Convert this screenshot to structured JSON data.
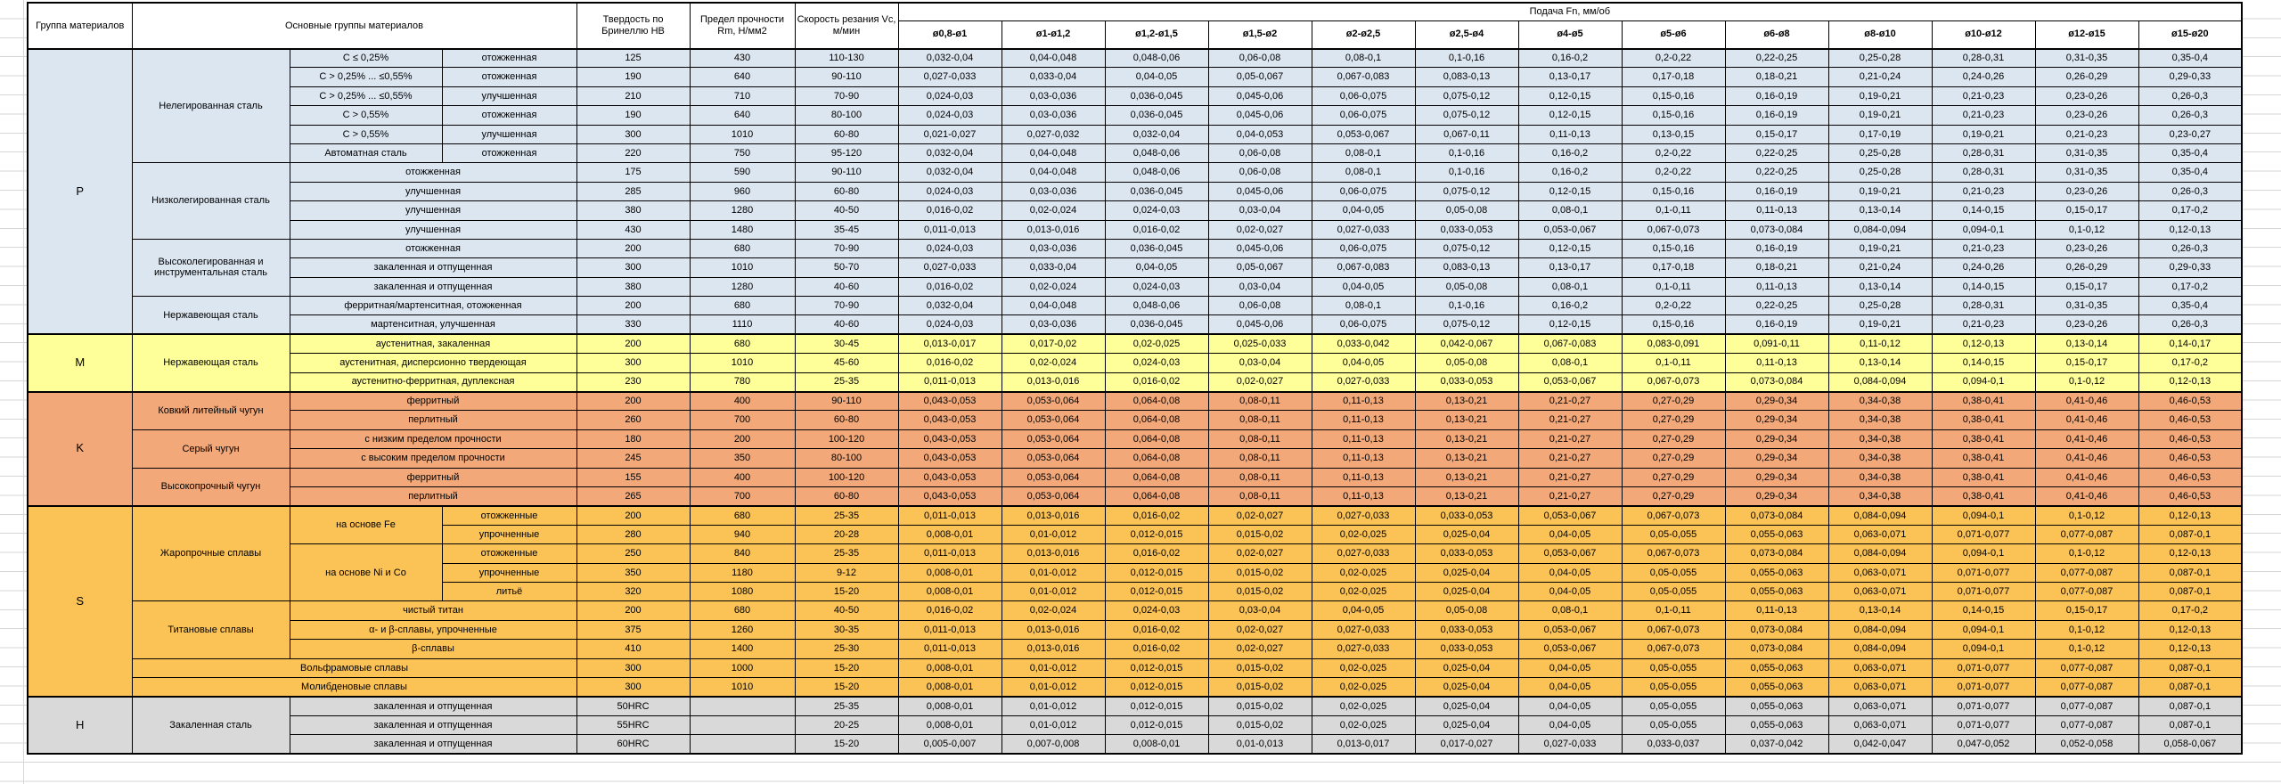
{
  "header": {
    "col_group": "Группа материалов",
    "col_materials": "Основные группы материалов",
    "col_hb": "Твердость по Бринеллю HB",
    "col_rm": "Предел прочности Rm, Н/мм2",
    "col_vc": "Скорость резания Vc, м/мин",
    "feed_title": "Подача Fn, мм/об",
    "diameters": [
      "ø0,8-ø1",
      "ø1-ø1,2",
      "ø1,2-ø1,5",
      "ø1,5-ø2",
      "ø2-ø2,5",
      "ø2,5-ø4",
      "ø4-ø5",
      "ø5-ø6",
      "ø6-ø8",
      "ø8-ø10",
      "ø10-ø12",
      "ø12-ø15",
      "ø15-ø20"
    ]
  },
  "feed_patterns": {
    "A": [
      "0,032-0,04",
      "0,04-0,048",
      "0,048-0,06",
      "0,06-0,08",
      "0,08-0,1",
      "0,1-0,16",
      "0,16-0,2",
      "0,2-0,22",
      "0,22-0,25",
      "0,25-0,28",
      "0,28-0,31",
      "0,31-0,35",
      "0,35-0,4"
    ],
    "B": [
      "0,027-0,033",
      "0,033-0,04",
      "0,04-0,05",
      "0,05-0,067",
      "0,067-0,083",
      "0,083-0,13",
      "0,13-0,17",
      "0,17-0,18",
      "0,18-0,21",
      "0,21-0,24",
      "0,24-0,26",
      "0,26-0,29",
      "0,29-0,33"
    ],
    "C": [
      "0,024-0,03",
      "0,03-0,036",
      "0,036-0,045",
      "0,045-0,06",
      "0,06-0,075",
      "0,075-0,12",
      "0,12-0,15",
      "0,15-0,16",
      "0,16-0,19",
      "0,19-0,21",
      "0,21-0,23",
      "0,23-0,26",
      "0,26-0,3"
    ],
    "D": [
      "0,021-0,027",
      "0,027-0,032",
      "0,032-0,04",
      "0,04-0,053",
      "0,053-0,067",
      "0,067-0,11",
      "0,11-0,13",
      "0,13-0,15",
      "0,15-0,17",
      "0,17-0,19",
      "0,19-0,21",
      "0,21-0,23",
      "0,23-0,27"
    ],
    "E": [
      "0,016-0,02",
      "0,02-0,024",
      "0,024-0,03",
      "0,03-0,04",
      "0,04-0,05",
      "0,05-0,08",
      "0,08-0,1",
      "0,1-0,11",
      "0,11-0,13",
      "0,13-0,14",
      "0,14-0,15",
      "0,15-0,17",
      "0,17-0,2"
    ],
    "F": [
      "0,011-0,013",
      "0,013-0,016",
      "0,016-0,02",
      "0,02-0,027",
      "0,027-0,033",
      "0,033-0,053",
      "0,053-0,067",
      "0,067-0,073",
      "0,073-0,084",
      "0,084-0,094",
      "0,094-0,1",
      "0,1-0,12",
      "0,12-0,13"
    ],
    "G": [
      "0,013-0,017",
      "0,017-0,02",
      "0,02-0,025",
      "0,025-0,033",
      "0,033-0,042",
      "0,042-0,067",
      "0,067-0,083",
      "0,083-0,091",
      "0,091-0,11",
      "0,11-0,12",
      "0,12-0,13",
      "0,13-0,14",
      "0,14-0,17"
    ],
    "K": [
      "0,043-0,053",
      "0,053-0,064",
      "0,064-0,08",
      "0,08-0,11",
      "0,11-0,13",
      "0,13-0,21",
      "0,21-0,27",
      "0,27-0,29",
      "0,29-0,34",
      "0,34-0,38",
      "0,38-0,41",
      "0,41-0,46",
      "0,46-0,53"
    ],
    "S": [
      "0,008-0,01",
      "0,01-0,012",
      "0,012-0,015",
      "0,015-0,02",
      "0,02-0,025",
      "0,025-0,04",
      "0,04-0,05",
      "0,05-0,055",
      "0,055-0,063",
      "0,063-0,071",
      "0,071-0,077",
      "0,077-0,087",
      "0,087-0,1"
    ],
    "H": [
      "0,005-0,007",
      "0,007-0,008",
      "0,008-0,01",
      "0,01-0,013",
      "0,013-0,017",
      "0,017-0,027",
      "0,027-0,033",
      "0,033-0,037",
      "0,037-0,042",
      "0,042-0,047",
      "0,047-0,052",
      "0,052-0,058",
      "0,058-0,067"
    ]
  },
  "groups": [
    {
      "code": "P",
      "color": "#dce6f1",
      "families": [
        {
          "name": "Нелегированная сталь",
          "rows": [
            {
              "sub": "C ≤ 0,25%",
              "state": "отожженная",
              "hb": "125",
              "rm": "430",
              "vc": "110-130",
              "feeds": "A"
            },
            {
              "sub": "C > 0,25% ... ≤0,55%",
              "state": "отожженная",
              "hb": "190",
              "rm": "640",
              "vc": "90-110",
              "feeds": "B"
            },
            {
              "sub": "C > 0,25% ... ≤0,55%",
              "state": "улучшенная",
              "hb": "210",
              "rm": "710",
              "vc": "70-90",
              "feeds": "C"
            },
            {
              "sub": "C > 0,55%",
              "state": "отожженная",
              "hb": "190",
              "rm": "640",
              "vc": "80-100",
              "feeds": "C"
            },
            {
              "sub": "C > 0,55%",
              "state": "улучшенная",
              "hb": "300",
              "rm": "1010",
              "vc": "60-80",
              "feeds": "D"
            },
            {
              "sub": "Автоматная сталь",
              "state": "отожженная",
              "hb": "220",
              "rm": "750",
              "vc": "95-120",
              "feeds": "A"
            }
          ]
        },
        {
          "name": "Низколегированная сталь",
          "rows": [
            {
              "sub": "отожженная",
              "merged": true,
              "hb": "175",
              "rm": "590",
              "vc": "90-110",
              "feeds": "A"
            },
            {
              "sub": "улучшенная",
              "merged": true,
              "hb": "285",
              "rm": "960",
              "vc": "60-80",
              "feeds": "C"
            },
            {
              "sub": "улучшенная",
              "merged": true,
              "hb": "380",
              "rm": "1280",
              "vc": "40-50",
              "feeds": "E"
            },
            {
              "sub": "улучшенная",
              "merged": true,
              "hb": "430",
              "rm": "1480",
              "vc": "35-45",
              "feeds": "F"
            }
          ]
        },
        {
          "name": "Высоколегированная и инструментальная сталь",
          "rows": [
            {
              "sub": "отожженная",
              "merged": true,
              "hb": "200",
              "rm": "680",
              "vc": "70-90",
              "feeds": "C"
            },
            {
              "sub": "закаленная и отпущенная",
              "merged": true,
              "hb": "300",
              "rm": "1010",
              "vc": "50-70",
              "feeds": "B"
            },
            {
              "sub": "закаленная и отпущенная",
              "merged": true,
              "hb": "380",
              "rm": "1280",
              "vc": "40-60",
              "feeds": "E"
            }
          ]
        },
        {
          "name": "Нержавеющая сталь",
          "rows": [
            {
              "sub": "ферритная/мартенситная, отожженная",
              "merged": true,
              "hb": "200",
              "rm": "680",
              "vc": "70-90",
              "feeds": "A"
            },
            {
              "sub": "мартенситная, улучшенная",
              "merged": true,
              "hb": "330",
              "rm": "1110",
              "vc": "40-60",
              "feeds": "C"
            }
          ]
        }
      ]
    },
    {
      "code": "M",
      "color": "#ffff99",
      "families": [
        {
          "name": "Нержавеющая сталь",
          "rows": [
            {
              "sub": "аустенитная, закаленная",
              "merged": true,
              "hb": "200",
              "rm": "680",
              "vc": "30-45",
              "feeds": "G"
            },
            {
              "sub": "аустенитная, дисперсионно твердеющая",
              "merged": true,
              "hb": "300",
              "rm": "1010",
              "vc": "45-60",
              "feeds": "E"
            },
            {
              "sub": "аустенитно-ферритная, дуплексная",
              "merged": true,
              "hb": "230",
              "rm": "780",
              "vc": "25-35",
              "feeds": "F"
            }
          ]
        }
      ]
    },
    {
      "code": "K",
      "color": "#f2a878",
      "families": [
        {
          "name": "Ковкий литейный чугун",
          "rows": [
            {
              "sub": "ферритный",
              "merged": true,
              "hb": "200",
              "rm": "400",
              "vc": "90-110",
              "feeds": "K"
            },
            {
              "sub": "перлитный",
              "merged": true,
              "hb": "260",
              "rm": "700",
              "vc": "60-80",
              "feeds": "K"
            }
          ]
        },
        {
          "name": "Серый чугун",
          "rows": [
            {
              "sub": "с низким пределом прочности",
              "merged": true,
              "hb": "180",
              "rm": "200",
              "vc": "100-120",
              "feeds": "K"
            },
            {
              "sub": "с высоким пределом прочности",
              "merged": true,
              "hb": "245",
              "rm": "350",
              "vc": "80-100",
              "feeds": "K"
            }
          ]
        },
        {
          "name": "Высокопрочный чугун",
          "rows": [
            {
              "sub": "ферритный",
              "merged": true,
              "hb": "155",
              "rm": "400",
              "vc": "100-120",
              "feeds": "K"
            },
            {
              "sub": "перлитный",
              "merged": true,
              "hb": "265",
              "rm": "700",
              "vc": "60-80",
              "feeds": "K"
            }
          ]
        }
      ]
    },
    {
      "code": "S",
      "color": "#fbc256",
      "families": [
        {
          "name": "Жаропрочные сплавы",
          "subgroups": [
            {
              "name": "на основе Fe",
              "rows": [
                {
                  "state": "отожженные",
                  "hb": "200",
                  "rm": "680",
                  "vc": "25-35",
                  "feeds": "F"
                },
                {
                  "state": "упрочненные",
                  "hb": "280",
                  "rm": "940",
                  "vc": "20-28",
                  "feeds": "S"
                }
              ]
            },
            {
              "name": "на основе Ni и Co",
              "rows": [
                {
                  "state": "отожженные",
                  "hb": "250",
                  "rm": "840",
                  "vc": "25-35",
                  "feeds": "F"
                },
                {
                  "state": "упрочненные",
                  "hb": "350",
                  "rm": "1180",
                  "vc": "9-12",
                  "feeds": "S"
                },
                {
                  "state": "литьё",
                  "hb": "320",
                  "rm": "1080",
                  "vc": "15-20",
                  "feeds": "S"
                }
              ]
            }
          ]
        },
        {
          "name": "Титановые сплавы",
          "rows": [
            {
              "sub": "чистый титан",
              "merged": true,
              "hb": "200",
              "rm": "680",
              "vc": "40-50",
              "feeds": "E"
            },
            {
              "sub": "α- и β-сплавы, упрочненные",
              "merged": true,
              "hb": "375",
              "rm": "1260",
              "vc": "30-35",
              "feeds": "F"
            },
            {
              "sub": "β-сплавы",
              "merged": true,
              "hb": "410",
              "rm": "1400",
              "vc": "25-30",
              "feeds": "F"
            }
          ]
        },
        {
          "name": "Вольфрамовые сплавы",
          "fullspan": true,
          "rows": [
            {
              "hb": "300",
              "rm": "1000",
              "vc": "15-20",
              "feeds": "S"
            }
          ]
        },
        {
          "name": "Молибденовые сплавы",
          "fullspan": true,
          "rows": [
            {
              "hb": "300",
              "rm": "1010",
              "vc": "15-20",
              "feeds": "S"
            }
          ]
        }
      ]
    },
    {
      "code": "H",
      "color": "#d9d9d9",
      "families": [
        {
          "name": "Закаленная сталь",
          "rows": [
            {
              "sub": "закаленная и отпущенная",
              "merged": true,
              "hb": "50HRC",
              "rm": "",
              "vc": "25-35",
              "feeds": "S"
            },
            {
              "sub": "закаленная и отпущенная",
              "merged": true,
              "hb": "55HRC",
              "rm": "",
              "vc": "20-25",
              "feeds": "S"
            },
            {
              "sub": "закаленная и отпущенная",
              "merged": true,
              "hb": "60HRC",
              "rm": "",
              "vc": "15-20",
              "feeds": "H"
            }
          ]
        }
      ]
    }
  ]
}
